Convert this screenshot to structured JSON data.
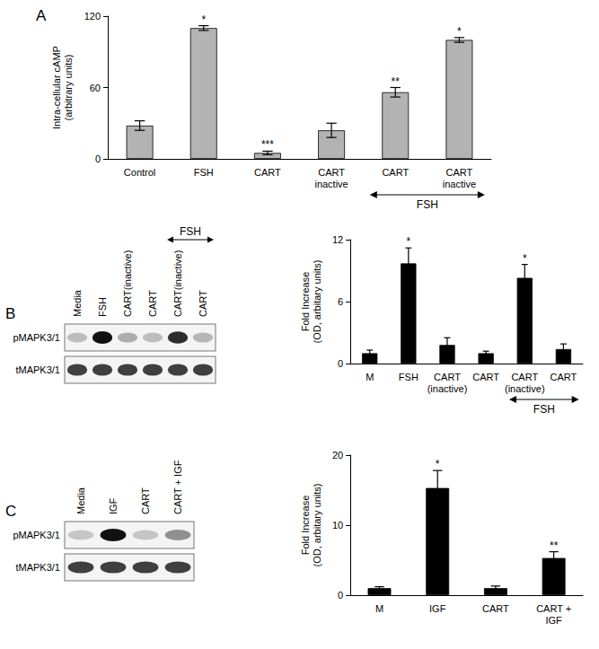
{
  "chart_data": [
    {
      "type": "bar",
      "panel_label": "A",
      "y_label": "Intra-cellular cAMP\n(arbitrary units)",
      "categories": [
        "Control",
        "FSH",
        "CART",
        "CART\ninactive",
        "CART",
        "CART\ninactive"
      ],
      "values": [
        28,
        110,
        5,
        24,
        56,
        100
      ],
      "errors": [
        4,
        2,
        1.5,
        6,
        4,
        2
      ],
      "significance": [
        null,
        "*",
        "***",
        null,
        "**",
        "*"
      ],
      "group": {
        "label": "FSH",
        "from": 4,
        "to": 5
      },
      "color": "#b3b3b3",
      "ylim": [
        0,
        120
      ],
      "yticks": [
        0,
        60,
        120
      ],
      "grid": false
    },
    {
      "type": "bar",
      "panel_label": "B",
      "y_label": "Fold Increase\n(OD, arbitary units)",
      "categories": [
        "M",
        "FSH",
        "CART\n(inactive)",
        "CART",
        "CART\n(inactive)",
        "CART"
      ],
      "values": [
        1,
        9.7,
        1.8,
        1.0,
        8.3,
        1.4
      ],
      "errors": [
        0.3,
        1.5,
        0.7,
        0.2,
        1.3,
        0.5
      ],
      "significance": [
        null,
        "*",
        null,
        null,
        "*",
        null
      ],
      "group": {
        "label": "FSH",
        "from": 4,
        "to": 5
      },
      "color": "#000000",
      "ylim": [
        0,
        12
      ],
      "yticks": [
        0,
        6,
        12
      ],
      "grid": false,
      "blot": {
        "lanes": [
          "Media",
          "FSH",
          "CART(inactive)",
          "CART",
          "CART(inactive)",
          "CART"
        ],
        "rows": [
          "pMAPK3/1",
          "tMAPK3/1"
        ],
        "group": {
          "label": "FSH",
          "from": 4,
          "to": 5
        }
      }
    },
    {
      "type": "bar",
      "panel_label": "C",
      "y_label": "Fold Increase\n(OD, arbitary units)",
      "categories": [
        "M",
        "IGF",
        "CART",
        "CART +\nIGF"
      ],
      "values": [
        1,
        15.3,
        1,
        5.3
      ],
      "errors": [
        0.2,
        2.5,
        0.3,
        0.9
      ],
      "significance": [
        null,
        "*",
        null,
        "**"
      ],
      "color": "#000000",
      "ylim": [
        0,
        20
      ],
      "yticks": [
        0,
        10,
        20
      ],
      "grid": false,
      "blot": {
        "lanes": [
          "Media",
          "IGF",
          "CART",
          "CART + IGF"
        ],
        "rows": [
          "pMAPK3/1",
          "tMAPK3/1"
        ]
      }
    }
  ]
}
